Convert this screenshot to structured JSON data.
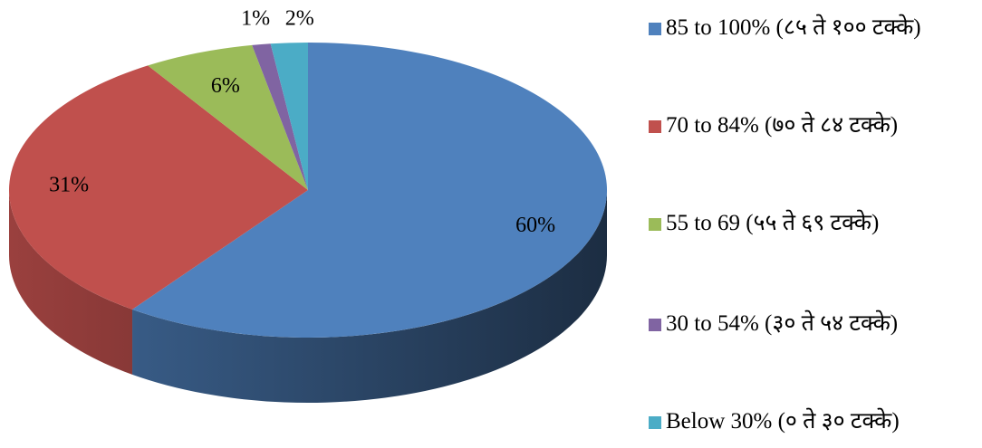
{
  "chart_data": {
    "type": "pie",
    "categories": [
      "85 to 100% (८५ ते १०० टक्के)",
      "70 to 84% (७० ते ८४ टक्के)",
      "55 to 69 (५५ ते ६९ टक्के)",
      "30 to 54% (३० ते ५४ टक्के)",
      "Below 30% (० ते ३० टक्के)"
    ],
    "values": [
      60,
      31,
      6,
      1,
      2
    ],
    "value_labels": [
      "60%",
      "31%",
      "6%",
      "1%",
      "2%"
    ],
    "colors": [
      "#4f81bd",
      "#c0504d",
      "#9bbb59",
      "#8064a2",
      "#4bacc6"
    ],
    "legend": "right"
  }
}
